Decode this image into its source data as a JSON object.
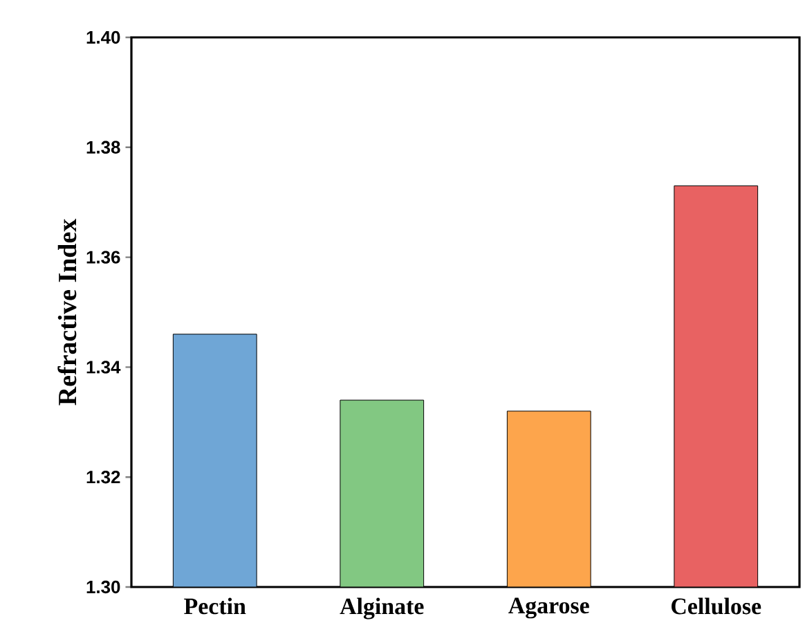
{
  "chart_data": {
    "type": "bar",
    "ylabel": "Refractive Index",
    "categories": [
      "Pectin",
      "Alginate",
      "Agarose",
      "Cellulose"
    ],
    "values": [
      1.346,
      1.334,
      1.332,
      1.373
    ],
    "colors": [
      "#6fa6d6",
      "#82c882",
      "#fda54c",
      "#e86262"
    ],
    "ylim": [
      1.3,
      1.4
    ],
    "yticks": [
      {
        "value": 1.3,
        "label": "1.30"
      },
      1.32,
      1.34,
      1.36,
      1.38,
      {
        "value": 1.4,
        "label": "1.40"
      }
    ]
  }
}
